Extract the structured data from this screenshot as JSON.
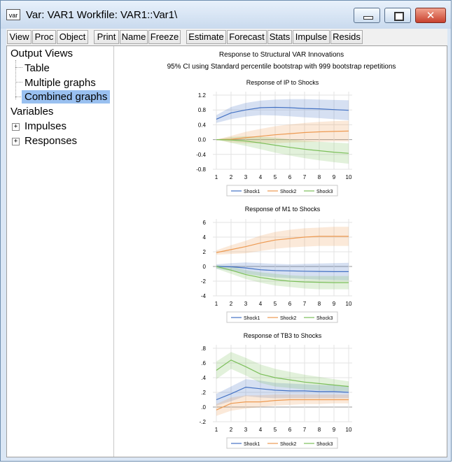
{
  "window": {
    "icon_label": "var",
    "title": "Var: VAR1   Workfile: VAR1::Var1\\"
  },
  "toolbar": {
    "buttons": [
      "View",
      "Proc",
      "Object",
      "Print",
      "Name",
      "Freeze",
      "Estimate",
      "Forecast",
      "Stats",
      "Impulse",
      "Resids"
    ]
  },
  "tree": {
    "output_views": "Output Views",
    "table": "Table",
    "multiple_graphs": "Multiple graphs",
    "combined_graphs": "Combined graphs",
    "variables": "Variables",
    "impulses": "Impulses",
    "responses": "Responses"
  },
  "graph_header": {
    "title": "Response to Structural VAR Innovations",
    "subtitle": "95% CI using Standard percentile bootstrap with 999 bootstrap repetitions"
  },
  "colors": {
    "shock1": "#4472c4",
    "shock2": "#ed9a52",
    "shock3": "#7cbf5a"
  },
  "chart_data": [
    {
      "type": "line",
      "title": "Response of IP to Shocks",
      "x": [
        1,
        2,
        3,
        4,
        5,
        6,
        7,
        8,
        9,
        10
      ],
      "ylim": [
        -0.8,
        1.2
      ],
      "yticks": [
        1.2,
        0.8,
        0.4,
        0.0,
        -0.4,
        -0.8
      ],
      "yticklabels": [
        "1.2",
        "0.8",
        "0.4",
        "0.0",
        "-0.4",
        "-0.8"
      ],
      "grid": true,
      "legend": "bottom",
      "series": [
        {
          "name": "Shock1",
          "values": [
            0.55,
            0.72,
            0.8,
            0.86,
            0.87,
            0.86,
            0.84,
            0.83,
            0.81,
            0.79
          ],
          "lower": [
            0.45,
            0.55,
            0.62,
            0.66,
            0.65,
            0.63,
            0.6,
            0.58,
            0.55,
            0.52
          ],
          "upper": [
            0.66,
            0.88,
            0.99,
            1.05,
            1.08,
            1.09,
            1.09,
            1.08,
            1.07,
            1.06
          ]
        },
        {
          "name": "Shock2",
          "values": [
            0.0,
            0.01,
            0.05,
            0.09,
            0.13,
            0.16,
            0.19,
            0.21,
            0.22,
            0.23
          ],
          "lower": [
            0.0,
            -0.08,
            -0.1,
            -0.1,
            -0.1,
            -0.08,
            -0.07,
            -0.06,
            -0.05,
            -0.05
          ],
          "upper": [
            0.0,
            0.1,
            0.21,
            0.29,
            0.36,
            0.41,
            0.45,
            0.48,
            0.5,
            0.51
          ]
        },
        {
          "name": "Shock3",
          "values": [
            0.0,
            -0.01,
            -0.04,
            -0.09,
            -0.15,
            -0.21,
            -0.26,
            -0.3,
            -0.34,
            -0.37
          ],
          "lower": [
            0.0,
            -0.09,
            -0.17,
            -0.26,
            -0.35,
            -0.43,
            -0.5,
            -0.56,
            -0.61,
            -0.65
          ],
          "upper": [
            0.0,
            0.07,
            0.09,
            0.08,
            0.05,
            0.01,
            -0.03,
            -0.06,
            -0.08,
            -0.1
          ]
        }
      ]
    },
    {
      "type": "line",
      "title": "Response of M1 to Shocks",
      "x": [
        1,
        2,
        3,
        4,
        5,
        6,
        7,
        8,
        9,
        10
      ],
      "ylim": [
        -4,
        6
      ],
      "yticks": [
        6,
        4,
        2,
        0,
        -2,
        -4
      ],
      "yticklabels": [
        "6",
        "4",
        "2",
        "0",
        "-2",
        "-4"
      ],
      "grid": true,
      "legend": "bottom",
      "series": [
        {
          "name": "Shock1",
          "values": [
            0.0,
            -0.05,
            -0.2,
            -0.45,
            -0.55,
            -0.6,
            -0.65,
            -0.68,
            -0.7,
            -0.7
          ],
          "lower": [
            -0.3,
            -0.6,
            -1.0,
            -1.3,
            -1.5,
            -1.6,
            -1.7,
            -1.8,
            -1.85,
            -1.9
          ],
          "upper": [
            0.3,
            0.45,
            0.55,
            0.45,
            0.35,
            0.3,
            0.35,
            0.4,
            0.45,
            0.5
          ]
        },
        {
          "name": "Shock2",
          "values": [
            1.9,
            2.3,
            2.7,
            3.2,
            3.6,
            3.8,
            4.0,
            4.1,
            4.1,
            4.1
          ],
          "lower": [
            1.6,
            1.7,
            1.8,
            2.1,
            2.4,
            2.6,
            2.7,
            2.8,
            2.8,
            2.8
          ],
          "upper": [
            2.2,
            2.9,
            3.5,
            4.2,
            4.7,
            5.0,
            5.2,
            5.3,
            5.4,
            5.4
          ]
        },
        {
          "name": "Shock3",
          "values": [
            0.0,
            -0.5,
            -1.1,
            -1.5,
            -1.8,
            -2.0,
            -2.1,
            -2.15,
            -2.2,
            -2.2
          ],
          "lower": [
            -0.3,
            -1.0,
            -1.7,
            -2.2,
            -2.6,
            -2.8,
            -3.0,
            -3.1,
            -3.1,
            -3.1
          ],
          "upper": [
            0.2,
            0.0,
            -0.5,
            -0.8,
            -1.0,
            -1.2,
            -1.3,
            -1.3,
            -1.3,
            -1.3
          ]
        }
      ]
    },
    {
      "type": "line",
      "title": "Response of TB3 to Shocks",
      "x": [
        1,
        2,
        3,
        4,
        5,
        6,
        7,
        8,
        9,
        10
      ],
      "ylim": [
        -0.2,
        0.8
      ],
      "yticks": [
        0.8,
        0.6,
        0.4,
        0.2,
        0.0,
        -0.2
      ],
      "yticklabels": [
        ".8",
        ".6",
        ".4",
        ".2",
        ".0",
        "-.2"
      ],
      "grid": true,
      "legend": "bottom",
      "series": [
        {
          "name": "Shock1",
          "values": [
            0.1,
            0.18,
            0.27,
            0.25,
            0.23,
            0.22,
            0.22,
            0.21,
            0.21,
            0.2
          ],
          "lower": [
            0.02,
            0.08,
            0.15,
            0.13,
            0.12,
            0.12,
            0.12,
            0.12,
            0.12,
            0.12
          ],
          "upper": [
            0.18,
            0.28,
            0.38,
            0.36,
            0.33,
            0.32,
            0.31,
            0.3,
            0.3,
            0.29
          ]
        },
        {
          "name": "Shock2",
          "values": [
            -0.04,
            0.05,
            0.07,
            0.07,
            0.09,
            0.1,
            0.1,
            0.1,
            0.1,
            0.1
          ],
          "lower": [
            -0.12,
            -0.05,
            -0.02,
            0.0,
            0.02,
            0.03,
            0.04,
            0.04,
            0.05,
            0.05
          ],
          "upper": [
            0.04,
            0.13,
            0.16,
            0.16,
            0.17,
            0.17,
            0.17,
            0.17,
            0.17,
            0.17
          ]
        },
        {
          "name": "Shock3",
          "values": [
            0.5,
            0.64,
            0.55,
            0.45,
            0.4,
            0.37,
            0.34,
            0.32,
            0.3,
            0.28
          ],
          "lower": [
            0.38,
            0.52,
            0.43,
            0.33,
            0.28,
            0.26,
            0.24,
            0.23,
            0.22,
            0.21
          ],
          "upper": [
            0.62,
            0.75,
            0.67,
            0.58,
            0.52,
            0.48,
            0.44,
            0.41,
            0.38,
            0.35
          ]
        }
      ]
    }
  ]
}
